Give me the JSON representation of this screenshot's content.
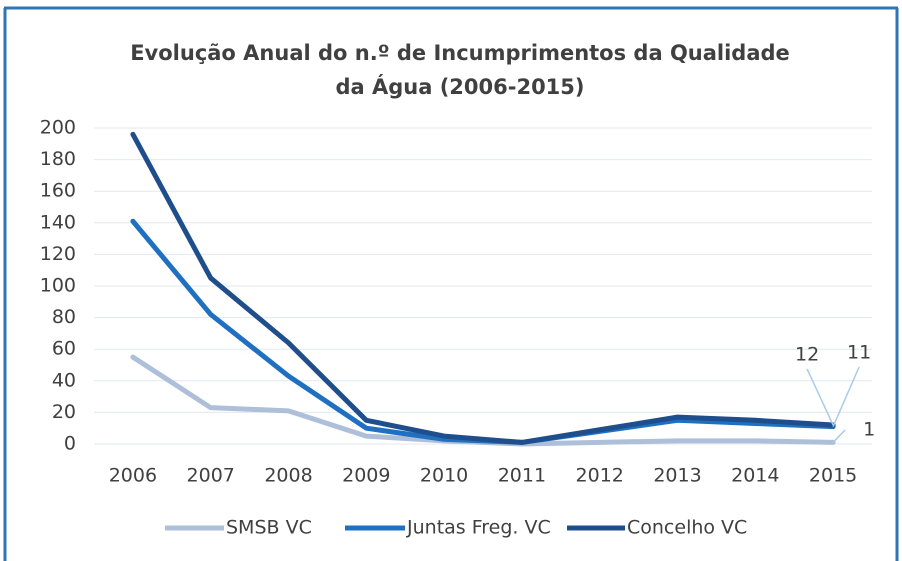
{
  "chart_data": {
    "type": "line",
    "title": "Evolução Anual do n.º de Incumprimentos da Qualidade da Água (2006-2015)",
    "categories": [
      "2006",
      "2007",
      "2008",
      "2009",
      "2010",
      "2011",
      "2012",
      "2013",
      "2014",
      "2015"
    ],
    "series": [
      {
        "name": "SMSB VC",
        "color": "#aebfd9",
        "values": [
          55,
          23,
          21,
          5,
          2,
          0,
          1,
          2,
          2,
          1
        ]
      },
      {
        "name": "Juntas Freg. VC",
        "color": "#1f70c1",
        "values": [
          141,
          82,
          43,
          10,
          3,
          1,
          8,
          15,
          13,
          11
        ]
      },
      {
        "name": "Concelho VC",
        "color": "#1f4e8c",
        "values": [
          196,
          105,
          64,
          15,
          5,
          1,
          9,
          17,
          15,
          12
        ]
      }
    ],
    "ylim": [
      0,
      200
    ],
    "yticks": [
      0,
      20,
      40,
      60,
      80,
      100,
      120,
      140,
      160,
      180,
      200
    ],
    "grid": true,
    "legend": "bottom"
  }
}
